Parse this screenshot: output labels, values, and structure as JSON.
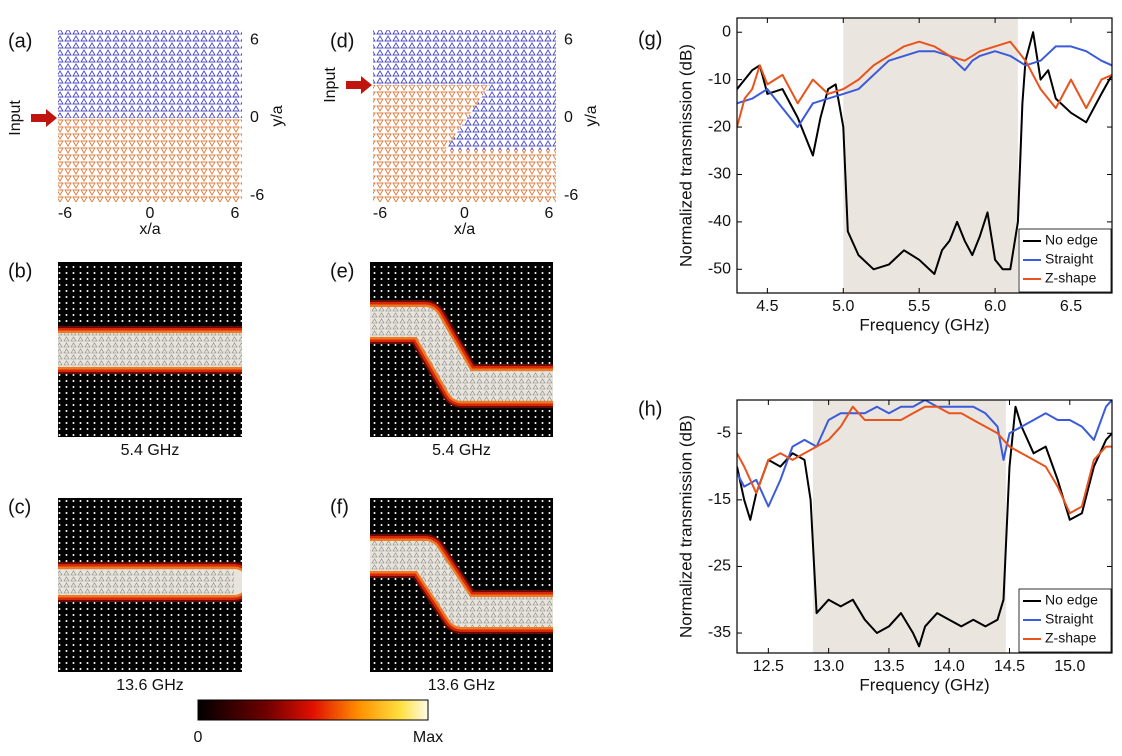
{
  "chart_data": [
    {
      "type": "lattice",
      "panel_label": "(a)",
      "xlim": [
        -6.5,
        6.5
      ],
      "ylim": [
        -6.5,
        6.8
      ],
      "xticks": [
        -6,
        0,
        6
      ],
      "yticks": [
        -6,
        0,
        6
      ],
      "xlabel": "x/a",
      "ylabel": "y/a",
      "annotation": "Input"
    },
    {
      "type": "field-map",
      "panel_label": "(b)",
      "caption": "5.4 GHz"
    },
    {
      "type": "field-map",
      "panel_label": "(c)",
      "caption": "13.6 GHz"
    },
    {
      "type": "lattice",
      "panel_label": "(d)",
      "xlim": [
        -6.5,
        6.5
      ],
      "ylim": [
        -6.5,
        6.8
      ],
      "xticks": [
        -6,
        0,
        6
      ],
      "yticks": [
        -6,
        0,
        6
      ],
      "xlabel": "x/a",
      "ylabel": "y/a",
      "annotation": "Input"
    },
    {
      "type": "field-map",
      "panel_label": "(e)",
      "caption": "5.4 GHz"
    },
    {
      "type": "field-map",
      "panel_label": "(f)",
      "caption": "13.6 GHz"
    },
    {
      "type": "colorbar",
      "labels": [
        "0",
        "Max"
      ]
    },
    {
      "type": "line",
      "panel_label": "(g)",
      "xlabel": "Frequency (GHz)",
      "ylabel": "Normalized transmission (dB)",
      "xlim": [
        4.3,
        6.77
      ],
      "ylim": [
        -55,
        3
      ],
      "xticks": [
        4.5,
        {
          "value": 5,
          "label": "5.0"
        },
        5.5,
        {
          "value": 6,
          "label": "6.0"
        },
        6.5
      ],
      "yticks": [
        0,
        -10,
        -20,
        -30,
        -40,
        -50
      ],
      "shaded_region": [
        5.0,
        6.15
      ],
      "shade_color": "#ebe5df",
      "legend": "lower right",
      "series": [
        {
          "name": "No edge",
          "color": "#000000",
          "x": [
            4.3,
            4.4,
            4.45,
            4.5,
            4.6,
            4.7,
            4.8,
            4.85,
            4.9,
            4.95,
            5.0,
            5.03,
            5.1,
            5.2,
            5.3,
            5.4,
            5.5,
            5.6,
            5.65,
            5.7,
            5.75,
            5.8,
            5.85,
            5.9,
            5.95,
            6.0,
            6.05,
            6.1,
            6.15,
            6.18,
            6.2,
            6.25,
            6.3,
            6.35,
            6.4,
            6.5,
            6.6,
            6.7,
            6.77
          ],
          "values": [
            -12,
            -8,
            -7,
            -13,
            -12,
            -18,
            -26,
            -18,
            -12,
            -11,
            -20,
            -42,
            -47,
            -50,
            -49,
            -46,
            -48,
            -51,
            -46,
            -44,
            -40,
            -44,
            -47,
            -43,
            -38,
            -48,
            -50,
            -50,
            -40,
            -15,
            -6,
            0,
            -10,
            -8,
            -14,
            -17,
            -19,
            -13,
            -9
          ]
        },
        {
          "name": "Straight",
          "color": "#3b5bdb",
          "x": [
            4.3,
            4.4,
            4.5,
            4.6,
            4.7,
            4.8,
            4.9,
            5.0,
            5.1,
            5.2,
            5.3,
            5.4,
            5.5,
            5.6,
            5.7,
            5.8,
            5.85,
            5.9,
            6.0,
            6.1,
            6.2,
            6.3,
            6.4,
            6.5,
            6.6,
            6.7,
            6.77
          ],
          "values": [
            -15,
            -14,
            -12,
            -16,
            -20,
            -15,
            -14,
            -13,
            -12,
            -9,
            -6,
            -5,
            -4,
            -4,
            -5,
            -8,
            -6,
            -5,
            -4,
            -5,
            -7,
            -6,
            -3,
            -3,
            -4,
            -6,
            -7
          ]
        },
        {
          "name": "Z-shape",
          "color": "#e8541c",
          "x": [
            4.3,
            4.35,
            4.4,
            4.45,
            4.5,
            4.6,
            4.7,
            4.8,
            4.9,
            5.0,
            5.1,
            5.2,
            5.3,
            5.4,
            5.5,
            5.6,
            5.7,
            5.8,
            5.9,
            6.0,
            6.1,
            6.2,
            6.3,
            6.4,
            6.5,
            6.6,
            6.7,
            6.77
          ],
          "values": [
            -20,
            -14,
            -12,
            -7,
            -11,
            -9,
            -15,
            -10,
            -13,
            -12,
            -10,
            -7,
            -5,
            -3,
            -2,
            -3,
            -5,
            -6,
            -4,
            -3,
            -2,
            -6,
            -12,
            -16,
            -10,
            -16,
            -10,
            -9
          ]
        }
      ]
    },
    {
      "type": "line",
      "panel_label": "(h)",
      "xlabel": "Frequency (GHz)",
      "ylabel": "Normalized transmission (dB)",
      "xlim": [
        12.24,
        15.35
      ],
      "ylim": [
        -38,
        0
      ],
      "xticks": [
        12.5,
        {
          "value": 13,
          "label": "13.0"
        },
        13.5,
        {
          "value": 14,
          "label": "14.0"
        },
        14.5,
        {
          "value": 15,
          "label": "15.0"
        }
      ],
      "yticks": [
        -5,
        -15,
        -25,
        -35
      ],
      "shaded_region": [
        12.87,
        14.47
      ],
      "shade_color": "#ebe5df",
      "legend": "lower right",
      "series": [
        {
          "name": "No edge",
          "color": "#000000",
          "x": [
            12.24,
            12.3,
            12.35,
            12.4,
            12.5,
            12.6,
            12.7,
            12.8,
            12.85,
            12.9,
            13.0,
            13.1,
            13.2,
            13.3,
            13.4,
            13.5,
            13.6,
            13.7,
            13.75,
            13.8,
            13.9,
            14.0,
            14.1,
            14.2,
            14.3,
            14.4,
            14.45,
            14.5,
            14.55,
            14.6,
            14.7,
            14.8,
            14.9,
            15.0,
            15.1,
            15.2,
            15.3,
            15.35
          ],
          "values": [
            -10,
            -15,
            -18,
            -14,
            -9,
            -10,
            -8,
            -9,
            -15,
            -32,
            -30,
            -31,
            -30,
            -33,
            -35,
            -34,
            -32,
            -35,
            -37,
            -34,
            -32,
            -33,
            -34,
            -33,
            -34,
            -33,
            -30,
            -10,
            -1,
            -4,
            -8,
            -7,
            -12,
            -18,
            -17,
            -10,
            -6,
            -5
          ]
        },
        {
          "name": "Straight",
          "color": "#3b5bdb",
          "x": [
            12.24,
            12.3,
            12.4,
            12.5,
            12.6,
            12.7,
            12.8,
            12.9,
            13.0,
            13.1,
            13.2,
            13.3,
            13.4,
            13.5,
            13.6,
            13.7,
            13.8,
            13.9,
            14.0,
            14.1,
            14.2,
            14.3,
            14.4,
            14.45,
            14.5,
            14.6,
            14.7,
            14.8,
            14.9,
            15.0,
            15.1,
            15.2,
            15.3,
            15.35
          ],
          "values": [
            -11,
            -13,
            -12,
            -16,
            -12,
            -7,
            -6,
            -7,
            -3,
            -2,
            -2,
            -2,
            -1,
            -2,
            -1,
            -1,
            0,
            -1,
            -1,
            -1,
            -1,
            -2,
            -4,
            -9,
            -5,
            -4,
            -3,
            -2,
            -3,
            -3,
            -4,
            -6,
            -1,
            0
          ]
        },
        {
          "name": "Z-shape",
          "color": "#e8541c",
          "x": [
            12.24,
            12.3,
            12.4,
            12.5,
            12.6,
            12.7,
            12.8,
            12.9,
            13.0,
            13.1,
            13.2,
            13.3,
            13.4,
            13.5,
            13.6,
            13.7,
            13.8,
            13.9,
            14.0,
            14.1,
            14.2,
            14.3,
            14.4,
            14.5,
            14.6,
            14.7,
            14.8,
            14.9,
            15.0,
            15.1,
            15.2,
            15.3,
            15.35
          ],
          "values": [
            -8,
            -10,
            -14,
            -9,
            -8,
            -9,
            -8,
            -7,
            -6,
            -4,
            -1,
            -3,
            -3,
            -3,
            -3,
            -2,
            -1,
            -1,
            -2,
            -2,
            -3,
            -4,
            -5,
            -7,
            -8,
            -9,
            -10,
            -13,
            -17,
            -16,
            -9,
            -7,
            -7
          ]
        }
      ]
    }
  ]
}
